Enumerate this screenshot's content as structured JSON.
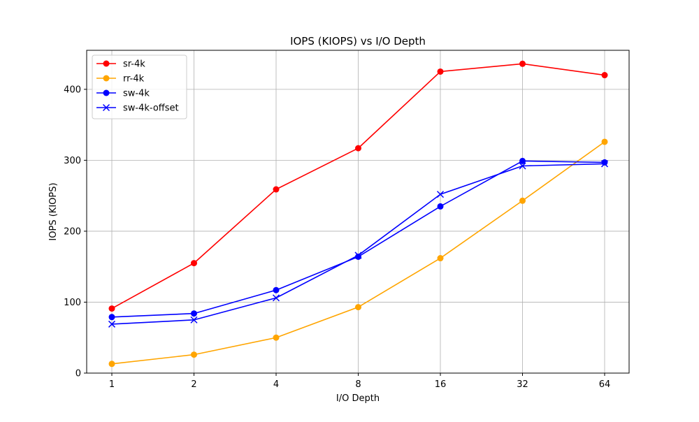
{
  "chart_data": {
    "type": "line",
    "title": "IOPS (KIOPS) vs I/O Depth",
    "xlabel": "I/O Depth",
    "ylabel": "IOPS (KIOPS)",
    "categories": [
      "1",
      "2",
      "4",
      "8",
      "16",
      "32",
      "64"
    ],
    "yticks": [
      "0",
      "100",
      "200",
      "300",
      "400"
    ],
    "ylim": [
      0,
      455
    ],
    "grid": true,
    "legend_position": "top-left",
    "series": [
      {
        "name": "sr-4k",
        "color": "#ff0000",
        "marker": "circle",
        "values": [
          91,
          155,
          259,
          317,
          425,
          436,
          420
        ]
      },
      {
        "name": "rr-4k",
        "color": "#ffa500",
        "marker": "circle",
        "values": [
          13,
          26,
          50,
          93,
          162,
          243,
          326
        ]
      },
      {
        "name": "sw-4k",
        "color": "#0000ff",
        "marker": "circle",
        "values": [
          79,
          84,
          117,
          164,
          235,
          299,
          297
        ]
      },
      {
        "name": "sw-4k-offset",
        "color": "#0000ff",
        "marker": "x",
        "values": [
          69,
          75,
          106,
          166,
          252,
          292,
          295
        ]
      }
    ]
  }
}
